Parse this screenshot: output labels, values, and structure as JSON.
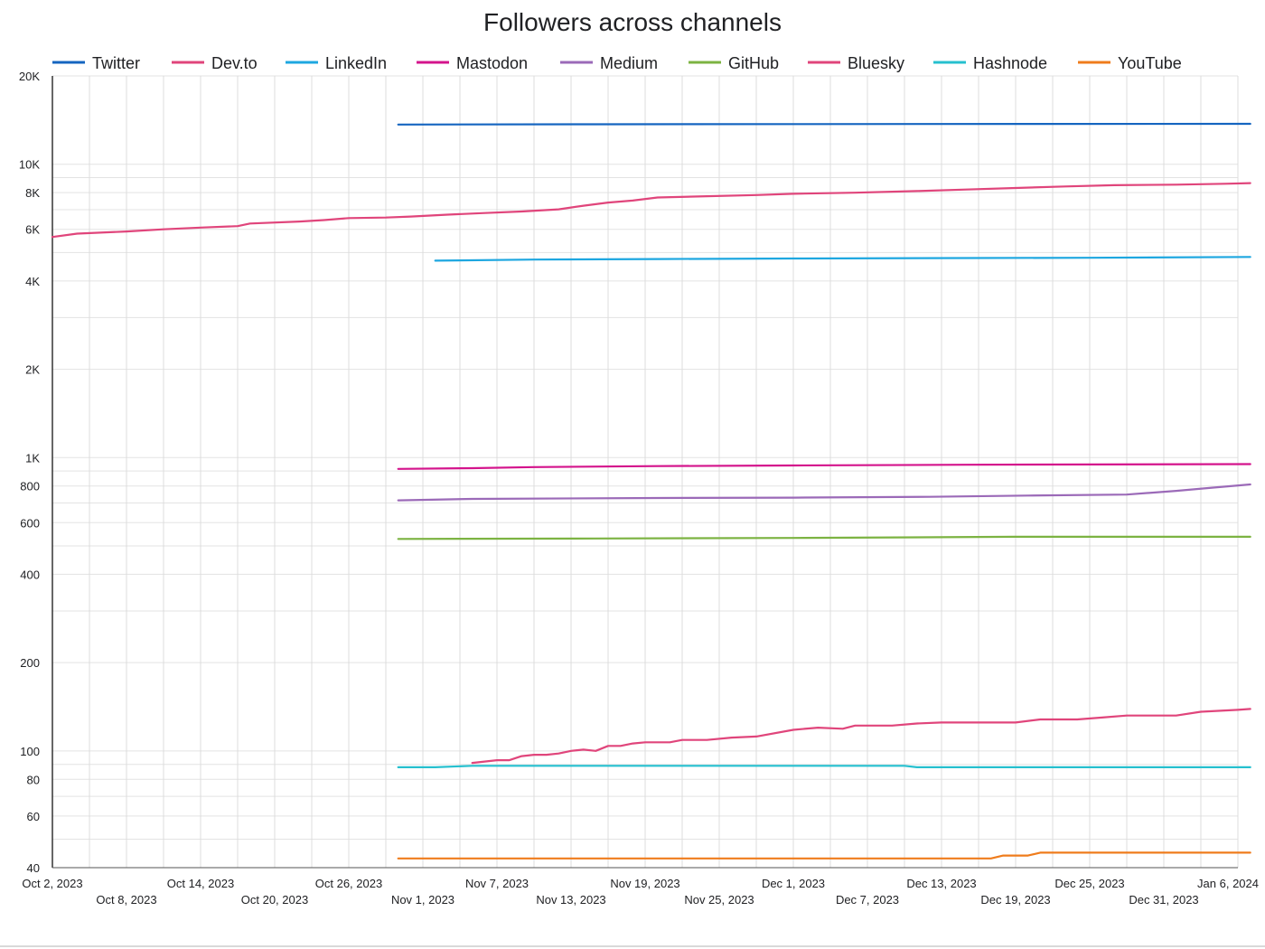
{
  "chart_data": {
    "type": "line",
    "title": "Followers across channels",
    "xlabel": "",
    "ylabel": "",
    "y_scale": "log",
    "ylim": [
      40,
      20000
    ],
    "xlim": [
      "2023-10-02",
      "2024-01-06"
    ],
    "grid": true,
    "legend_position": "top",
    "y_ticks": [
      {
        "value": 40,
        "label": "40"
      },
      {
        "value": 60,
        "label": "60"
      },
      {
        "value": 80,
        "label": "80"
      },
      {
        "value": 100,
        "label": "100"
      },
      {
        "value": 200,
        "label": "200"
      },
      {
        "value": 400,
        "label": "400"
      },
      {
        "value": 600,
        "label": "600"
      },
      {
        "value": 800,
        "label": "800"
      },
      {
        "value": 1000,
        "label": "1K"
      },
      {
        "value": 2000,
        "label": "2K"
      },
      {
        "value": 4000,
        "label": "4K"
      },
      {
        "value": 6000,
        "label": "6K"
      },
      {
        "value": 8000,
        "label": "8K"
      },
      {
        "value": 10000,
        "label": "10K"
      },
      {
        "value": 20000,
        "label": "20K"
      }
    ],
    "x_ticks": [
      {
        "date": "2023-10-02",
        "label": "Oct 2, 2023",
        "row": 0
      },
      {
        "date": "2023-10-08",
        "label": "Oct 8, 2023",
        "row": 1
      },
      {
        "date": "2023-10-14",
        "label": "Oct 14, 2023",
        "row": 0
      },
      {
        "date": "2023-10-20",
        "label": "Oct 20, 2023",
        "row": 1
      },
      {
        "date": "2023-10-26",
        "label": "Oct 26, 2023",
        "row": 0
      },
      {
        "date": "2023-11-01",
        "label": "Nov 1, 2023",
        "row": 1
      },
      {
        "date": "2023-11-07",
        "label": "Nov 7, 2023",
        "row": 0
      },
      {
        "date": "2023-11-13",
        "label": "Nov 13, 2023",
        "row": 1
      },
      {
        "date": "2023-11-19",
        "label": "Nov 19, 2023",
        "row": 0
      },
      {
        "date": "2023-11-25",
        "label": "Nov 25, 2023",
        "row": 1
      },
      {
        "date": "2023-12-01",
        "label": "Dec 1, 2023",
        "row": 0
      },
      {
        "date": "2023-12-07",
        "label": "Dec 7, 2023",
        "row": 1
      },
      {
        "date": "2023-12-13",
        "label": "Dec 13, 2023",
        "row": 0
      },
      {
        "date": "2023-12-19",
        "label": "Dec 19, 2023",
        "row": 1
      },
      {
        "date": "2023-12-25",
        "label": "Dec 25, 2023",
        "row": 0
      },
      {
        "date": "2023-12-31",
        "label": "Dec 31, 2023",
        "row": 1
      },
      {
        "date": "2024-01-06",
        "label": "Jan 6, 2024",
        "row": 0
      }
    ],
    "series": [
      {
        "name": "Twitter",
        "color": "#1565c0",
        "points": [
          [
            "2023-10-30",
            13650
          ],
          [
            "2023-11-15",
            13680
          ],
          [
            "2023-12-01",
            13700
          ],
          [
            "2023-12-20",
            13720
          ],
          [
            "2024-01-07",
            13730
          ]
        ]
      },
      {
        "name": "Dev.to",
        "color": "#e0457b",
        "points": [
          [
            "2023-10-02",
            5650
          ],
          [
            "2023-10-04",
            5800
          ],
          [
            "2023-10-08",
            5900
          ],
          [
            "2023-10-11",
            6000
          ],
          [
            "2023-10-14",
            6080
          ],
          [
            "2023-10-17",
            6150
          ],
          [
            "2023-10-18",
            6280
          ],
          [
            "2023-10-22",
            6380
          ],
          [
            "2023-10-24",
            6450
          ],
          [
            "2023-10-26",
            6550
          ],
          [
            "2023-10-29",
            6580
          ],
          [
            "2023-10-31",
            6630
          ],
          [
            "2023-11-03",
            6730
          ],
          [
            "2023-11-06",
            6820
          ],
          [
            "2023-11-09",
            6900
          ],
          [
            "2023-11-12",
            7020
          ],
          [
            "2023-11-14",
            7220
          ],
          [
            "2023-11-16",
            7400
          ],
          [
            "2023-11-18",
            7520
          ],
          [
            "2023-11-20",
            7700
          ],
          [
            "2023-11-24",
            7780
          ],
          [
            "2023-11-28",
            7850
          ],
          [
            "2023-12-01",
            7930
          ],
          [
            "2023-12-06",
            8000
          ],
          [
            "2023-12-11",
            8100
          ],
          [
            "2023-12-15",
            8200
          ],
          [
            "2023-12-19",
            8300
          ],
          [
            "2023-12-23",
            8400
          ],
          [
            "2023-12-27",
            8480
          ],
          [
            "2024-01-01",
            8520
          ],
          [
            "2024-01-05",
            8580
          ],
          [
            "2024-01-07",
            8620
          ]
        ]
      },
      {
        "name": "LinkedIn",
        "color": "#1ea7e0",
        "points": [
          [
            "2023-11-02",
            4690
          ],
          [
            "2023-11-10",
            4730
          ],
          [
            "2023-11-20",
            4750
          ],
          [
            "2023-12-01",
            4770
          ],
          [
            "2023-12-15",
            4790
          ],
          [
            "2023-12-25",
            4800
          ],
          [
            "2024-01-07",
            4830
          ]
        ]
      },
      {
        "name": "Mastodon",
        "color": "#d4148c",
        "points": [
          [
            "2023-10-30",
            915
          ],
          [
            "2023-11-05",
            920
          ],
          [
            "2023-11-10",
            928
          ],
          [
            "2023-11-20",
            935
          ],
          [
            "2023-12-01",
            940
          ],
          [
            "2023-12-15",
            945
          ],
          [
            "2024-01-07",
            950
          ]
        ]
      },
      {
        "name": "Medium",
        "color": "#9b6ab8",
        "points": [
          [
            "2023-10-30",
            715
          ],
          [
            "2023-11-05",
            723
          ],
          [
            "2023-11-20",
            728
          ],
          [
            "2023-12-01",
            730
          ],
          [
            "2023-12-12",
            735
          ],
          [
            "2023-12-20",
            742
          ],
          [
            "2023-12-28",
            748
          ],
          [
            "2024-01-01",
            770
          ],
          [
            "2024-01-04",
            790
          ],
          [
            "2024-01-07",
            810
          ]
        ]
      },
      {
        "name": "GitHub",
        "color": "#7cb342",
        "points": [
          [
            "2023-10-30",
            528
          ],
          [
            "2023-11-15",
            530
          ],
          [
            "2023-12-01",
            532
          ],
          [
            "2023-12-19",
            537
          ],
          [
            "2024-01-07",
            537
          ]
        ]
      },
      {
        "name": "Bluesky",
        "color": "#e0457b",
        "points": [
          [
            "2023-11-05",
            91
          ],
          [
            "2023-11-06",
            92
          ],
          [
            "2023-11-07",
            93
          ],
          [
            "2023-11-08",
            93
          ],
          [
            "2023-11-09",
            96
          ],
          [
            "2023-11-10",
            97
          ],
          [
            "2023-11-11",
            97
          ],
          [
            "2023-11-12",
            98
          ],
          [
            "2023-11-13",
            100
          ],
          [
            "2023-11-14",
            101
          ],
          [
            "2023-11-15",
            100
          ],
          [
            "2023-11-16",
            104
          ],
          [
            "2023-11-17",
            104
          ],
          [
            "2023-11-18",
            106
          ],
          [
            "2023-11-19",
            107
          ],
          [
            "2023-11-21",
            107
          ],
          [
            "2023-11-22",
            109
          ],
          [
            "2023-11-24",
            109
          ],
          [
            "2023-11-26",
            111
          ],
          [
            "2023-11-28",
            112
          ],
          [
            "2023-12-01",
            118
          ],
          [
            "2023-12-03",
            120
          ],
          [
            "2023-12-05",
            119
          ],
          [
            "2023-12-06",
            122
          ],
          [
            "2023-12-09",
            122
          ],
          [
            "2023-12-11",
            124
          ],
          [
            "2023-12-13",
            125
          ],
          [
            "2023-12-19",
            125
          ],
          [
            "2023-12-21",
            128
          ],
          [
            "2023-12-24",
            128
          ],
          [
            "2023-12-26",
            130
          ],
          [
            "2023-12-28",
            132
          ],
          [
            "2024-01-01",
            132
          ],
          [
            "2024-01-03",
            136
          ],
          [
            "2024-01-06",
            138
          ],
          [
            "2024-01-07",
            139
          ]
        ]
      },
      {
        "name": "Hashnode",
        "color": "#26c0cf",
        "points": [
          [
            "2023-10-30",
            88
          ],
          [
            "2023-11-02",
            88
          ],
          [
            "2023-11-05",
            89
          ],
          [
            "2023-11-20",
            89
          ],
          [
            "2023-12-10",
            89
          ],
          [
            "2023-12-11",
            88
          ],
          [
            "2024-01-07",
            88
          ]
        ]
      },
      {
        "name": "YouTube",
        "color": "#ef7c1c",
        "points": [
          [
            "2023-10-30",
            43
          ],
          [
            "2023-11-20",
            43
          ],
          [
            "2023-12-17",
            43
          ],
          [
            "2023-12-18",
            44
          ],
          [
            "2023-12-20",
            44
          ],
          [
            "2023-12-21",
            45
          ],
          [
            "2024-01-07",
            45
          ]
        ]
      }
    ]
  }
}
